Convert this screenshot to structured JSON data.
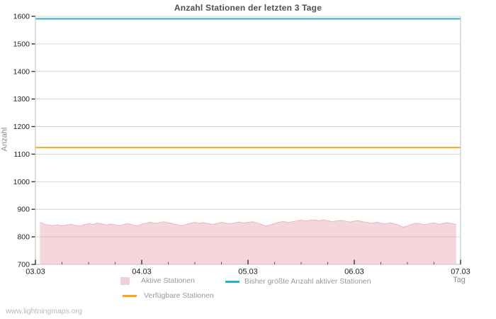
{
  "page": {
    "watermark": "www.lightningmaps.org"
  },
  "colors": {
    "background": "#ffffff",
    "title": "#4f4f4f",
    "grid": "#d6d6d6",
    "frame": "#c9c9c9",
    "tick": "#333333",
    "tick_label": "#222222",
    "minor_tick": "#555555",
    "axis_title": "#8a8a8a",
    "legend_text": "#999999",
    "watermark": "#b9b9b9"
  },
  "chart_data": {
    "type": "area",
    "title": "Anzahl Stationen der letzten 3 Tage",
    "xlabel": "Tag",
    "ylabel": "Anzahl",
    "ylim": [
      700,
      1600
    ],
    "ytick_step": 100,
    "grid": "horizontal-only",
    "legend_position": "bottom",
    "x_axis": {
      "tick_labels": [
        "03.03",
        "04.03",
        "05.03",
        "06.03",
        "07.03"
      ],
      "total_hours": 96,
      "major_tick_every_hours": 24,
      "minor_tick_every_hours": 6
    },
    "series": [
      {
        "name": "Aktive Stationen",
        "type": "area",
        "color": "#E28D98",
        "fill_opacity": 0.35,
        "stroke_opacity": 0.55,
        "swatch_color": "#F2D0D5",
        "x_start_hour": 1,
        "x_step_hours": 1,
        "values": [
          853,
          846,
          843,
          841,
          844,
          840,
          843,
          846,
          842,
          839,
          844,
          848,
          845,
          850,
          847,
          843,
          846,
          844,
          841,
          845,
          848,
          843,
          840,
          846,
          850,
          853,
          849,
          852,
          855,
          851,
          848,
          844,
          841,
          845,
          850,
          853,
          849,
          852,
          848,
          845,
          849,
          853,
          850,
          847,
          851,
          854,
          850,
          853,
          855,
          851,
          846,
          839,
          843,
          849,
          853,
          856,
          852,
          855,
          858,
          861,
          857,
          860,
          862,
          858,
          861,
          859,
          855,
          858,
          860,
          857,
          854,
          857,
          859,
          855,
          852,
          849,
          853,
          850,
          847,
          851,
          848,
          843,
          835,
          840,
          846,
          850,
          847,
          844,
          848,
          851,
          846,
          849,
          852,
          848,
          845
        ]
      },
      {
        "name": "Bisher größte Anzahl aktiver Stationen",
        "type": "hline",
        "color": "#2CAECB",
        "value": 1591
      },
      {
        "name": "Verfügbare Stationen",
        "type": "hline",
        "color": "#F8A816",
        "value": 1124
      }
    ]
  }
}
